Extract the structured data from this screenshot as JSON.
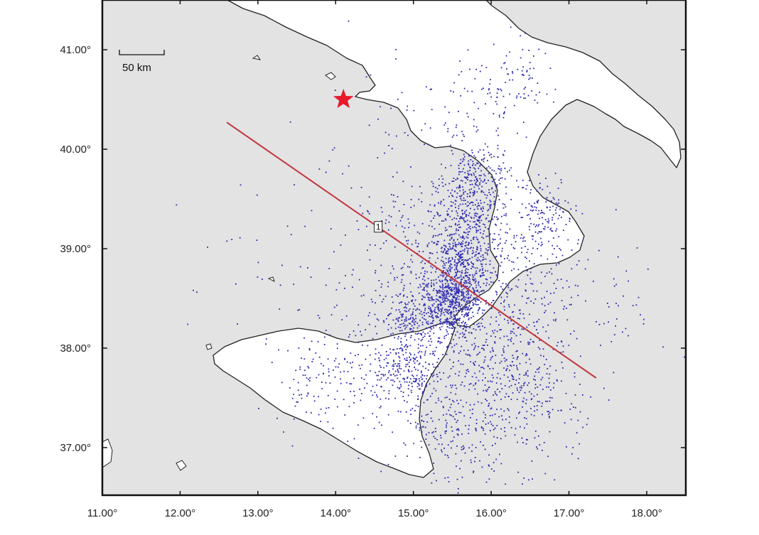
{
  "map": {
    "lon_range": [
      11.0,
      18.5
    ],
    "lat_range": [
      36.55,
      41.5
    ],
    "x_ticks": [
      "11.00°",
      "12.00°",
      "13.00°",
      "14.00°",
      "15.00°",
      "16.00°",
      "17.00°",
      "18.00°"
    ],
    "x_tick_values": [
      11,
      12,
      13,
      14,
      15,
      16,
      17,
      18
    ],
    "y_ticks": [
      "41.00°",
      "40.00°",
      "39.00°",
      "38.00°",
      "37.00°"
    ],
    "y_tick_values": [
      41,
      40,
      39,
      38,
      37
    ],
    "scale_bar": {
      "label": "50 km"
    },
    "epicenter_star": {
      "lon": 14.1,
      "lat": 40.5,
      "color": "#e8192c",
      "icon": "star-icon"
    },
    "profile": {
      "label": "1",
      "start": {
        "lon": 12.6,
        "lat": 40.27
      },
      "end": {
        "lon": 17.35,
        "lat": 37.7
      },
      "color": "#c2363e"
    },
    "colors": {
      "sea": "#e3e3e3",
      "land": "#ffffff",
      "coast": "#222222",
      "event": "#2d2ab0"
    },
    "seismicity_clusters": [
      {
        "lon": 15.5,
        "lat": 38.45,
        "s": 0.18,
        "n": 420
      },
      {
        "lon": 15.6,
        "lat": 38.85,
        "s": 0.22,
        "n": 380
      },
      {
        "lon": 15.75,
        "lat": 39.35,
        "s": 0.25,
        "n": 320
      },
      {
        "lon": 15.85,
        "lat": 39.75,
        "s": 0.2,
        "n": 160
      },
      {
        "lon": 15.2,
        "lat": 38.35,
        "s": 0.3,
        "n": 260
      },
      {
        "lon": 14.9,
        "lat": 38.3,
        "s": 0.12,
        "n": 90
      },
      {
        "lon": 14.9,
        "lat": 37.8,
        "s": 0.2,
        "n": 180
      },
      {
        "lon": 14.5,
        "lat": 37.75,
        "s": 0.35,
        "n": 110
      },
      {
        "lon": 13.7,
        "lat": 37.7,
        "s": 0.25,
        "n": 90
      },
      {
        "lon": 15.9,
        "lat": 37.6,
        "s": 0.4,
        "n": 230
      },
      {
        "lon": 16.3,
        "lat": 37.9,
        "s": 0.35,
        "n": 180
      },
      {
        "lon": 16.7,
        "lat": 39.4,
        "s": 0.18,
        "n": 120
      },
      {
        "lon": 16.5,
        "lat": 38.9,
        "s": 0.25,
        "n": 80
      },
      {
        "lon": 16.2,
        "lat": 38.45,
        "s": 0.3,
        "n": 110
      },
      {
        "lon": 16.0,
        "lat": 40.5,
        "s": 0.3,
        "n": 90
      },
      {
        "lon": 16.5,
        "lat": 40.7,
        "s": 0.2,
        "n": 40
      },
      {
        "lon": 15.1,
        "lat": 39.1,
        "s": 0.45,
        "n": 160
      },
      {
        "lon": 14.4,
        "lat": 38.7,
        "s": 0.4,
        "n": 60
      },
      {
        "lon": 15.3,
        "lat": 37.3,
        "s": 0.3,
        "n": 120
      },
      {
        "lon": 16.6,
        "lat": 37.3,
        "s": 0.4,
        "n": 90
      },
      {
        "lon": 17.4,
        "lat": 38.5,
        "s": 0.45,
        "n": 70
      },
      {
        "lon": 14.8,
        "lat": 40.2,
        "s": 0.6,
        "n": 50
      },
      {
        "lon": 13.3,
        "lat": 38.8,
        "s": 0.6,
        "n": 40
      },
      {
        "lon": 15.6,
        "lat": 36.9,
        "s": 0.25,
        "n": 60
      }
    ]
  }
}
